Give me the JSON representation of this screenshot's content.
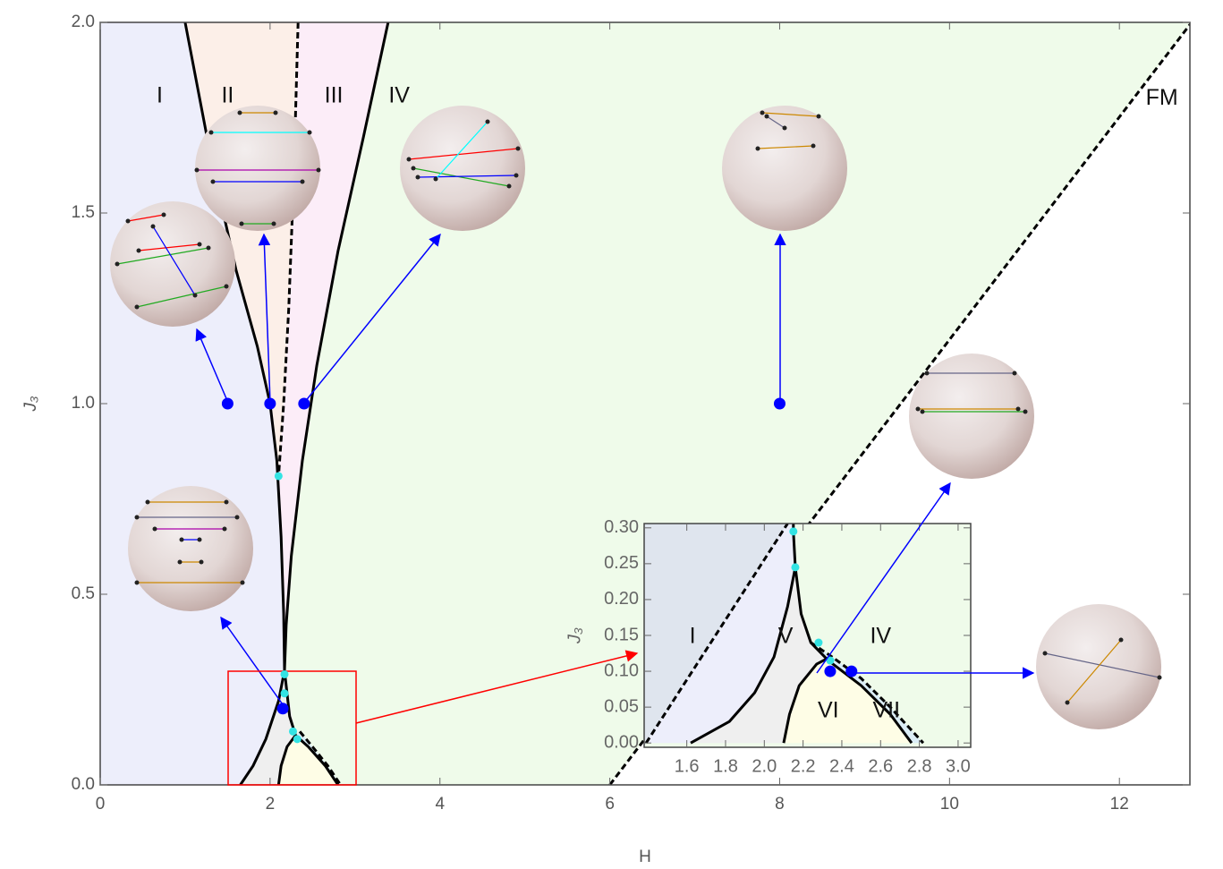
{
  "chart_data": [
    {
      "type": "line",
      "x_label": "H",
      "y_label": "J₃",
      "xlim": [
        0,
        12.83
      ],
      "ylim": [
        0,
        2.0
      ],
      "xticks": [
        0,
        2,
        4,
        6,
        8,
        10,
        12
      ],
      "yticks": [
        {
          "value": 0,
          "label": "0.0"
        },
        0.5,
        {
          "value": 1.0,
          "label": "1.0"
        },
        1.5,
        {
          "value": 2.0,
          "label": "2.0"
        }
      ],
      "series": [
        {
          "color": "#000000",
          "dash": false,
          "x": [
            1.0,
            1.3,
            1.6,
            1.85,
            2.0,
            2.08,
            2.13,
            2.16,
            2.17
          ],
          "y": [
            2.0,
            1.65,
            1.35,
            1.15,
            1.0,
            0.85,
            0.65,
            0.45,
            0.3
          ]
        },
        {
          "color": "#000000",
          "dash": true,
          "x": [
            2.33,
            2.28,
            2.22,
            2.16,
            2.1
          ],
          "y": [
            2.0,
            1.6,
            1.25,
            1.0,
            0.81
          ]
        },
        {
          "color": "#000000",
          "dash": false,
          "x": [
            3.39,
            3.1,
            2.8,
            2.55,
            2.38,
            2.25,
            2.19,
            2.17
          ],
          "y": [
            2.0,
            1.7,
            1.4,
            1.1,
            0.85,
            0.6,
            0.42,
            0.3
          ]
        },
        {
          "color": "#000000",
          "dash": false,
          "x": [
            2.17,
            2.1,
            1.95,
            1.8,
            1.65
          ],
          "y": [
            0.3,
            0.22,
            0.12,
            0.05,
            0.0
          ]
        },
        {
          "color": "#000000",
          "dash": false,
          "x": [
            2.1,
            2.13,
            2.2,
            2.3
          ],
          "y": [
            0.0,
            0.05,
            0.1,
            0.13
          ]
        },
        {
          "color": "#000000",
          "dash": false,
          "x": [
            2.17,
            2.23,
            2.3,
            2.45,
            2.65,
            2.8
          ],
          "y": [
            0.3,
            0.18,
            0.13,
            0.1,
            0.05,
            0.0
          ]
        },
        {
          "color": "#000000",
          "dash": true,
          "x": [
            2.35,
            2.5,
            2.68,
            2.83
          ],
          "y": [
            0.14,
            0.1,
            0.05,
            0.0
          ]
        },
        {
          "color": "#000000",
          "dash": true,
          "x": [
            6.0,
            12.85
          ],
          "y": [
            0.0,
            2.0
          ]
        }
      ],
      "points": [
        {
          "color": "#0000ff",
          "x": [
            1.5,
            2.0,
            2.4,
            8.0,
            2.15
          ],
          "y": [
            1.0,
            1.0,
            1.0,
            1.0,
            0.2
          ]
        },
        {
          "color": "#33e3e3",
          "x": [
            2.1,
            2.17,
            2.17,
            2.27,
            2.32
          ],
          "y": [
            0.81,
            0.29,
            0.24,
            0.14,
            0.12
          ]
        }
      ],
      "annotations": [
        {
          "text": "I",
          "x": 0.7,
          "y": 1.805
        },
        {
          "text": "II",
          "x": 1.5,
          "y": 1.805
        },
        {
          "text": "III",
          "x": 2.75,
          "y": 1.805
        },
        {
          "text": "IV",
          "x": 3.52,
          "y": 1.805
        },
        {
          "text": "FM",
          "x": 12.5,
          "y": 1.8
        }
      ]
    },
    {
      "type": "line",
      "y_label": "J₃",
      "xlim": [
        1.38,
        3.065
      ],
      "ylim": [
        -0.006,
        0.306
      ],
      "xticks": [
        1.6,
        1.8,
        {
          "value": 2.0,
          "label": "2.0"
        },
        2.2,
        2.4,
        2.6,
        2.8,
        {
          "value": 3.0,
          "label": "3.0"
        }
      ],
      "yticks": [
        {
          "value": 0,
          "label": "0.00"
        },
        0.05,
        {
          "value": 0.1,
          "label": "0.10"
        },
        0.15,
        {
          "value": 0.2,
          "label": "0.20"
        },
        0.25,
        {
          "value": 0.3,
          "label": "0.30"
        }
      ],
      "series": [
        {
          "color": "#000000",
          "dash": true,
          "x": [
            1.39,
            2.12
          ],
          "y": [
            0.0,
            0.306
          ]
        },
        {
          "color": "#000000",
          "dash": false,
          "x": [
            2.15,
            2.15,
            2.16
          ],
          "y": [
            0.306,
            0.295,
            0.245
          ]
        },
        {
          "color": "#000000",
          "dash": false,
          "x": [
            2.16,
            2.12,
            2.05,
            1.95,
            1.82,
            1.62
          ],
          "y": [
            0.245,
            0.19,
            0.12,
            0.07,
            0.03,
            0.0
          ]
        },
        {
          "color": "#000000",
          "dash": false,
          "x": [
            2.16,
            2.19,
            2.24,
            2.33,
            2.5,
            2.65,
            2.76
          ],
          "y": [
            0.245,
            0.18,
            0.14,
            0.115,
            0.08,
            0.04,
            0.0
          ]
        },
        {
          "color": "#000000",
          "dash": false,
          "x": [
            2.1,
            2.13,
            2.18,
            2.27,
            2.34
          ],
          "y": [
            0.0,
            0.04,
            0.08,
            0.11,
            0.12
          ]
        },
        {
          "color": "#000000",
          "dash": true,
          "x": [
            2.24,
            2.35,
            2.5,
            2.65,
            2.82
          ],
          "y": [
            0.14,
            0.12,
            0.09,
            0.05,
            0.0
          ]
        }
      ],
      "points": [
        {
          "color": "#0000ff",
          "x": [
            2.34,
            2.45
          ],
          "y": [
            0.1,
            0.1
          ]
        },
        {
          "color": "#33e3e3",
          "x": [
            2.15,
            2.16,
            2.28,
            2.34
          ],
          "y": [
            0.295,
            0.245,
            0.14,
            0.115
          ]
        }
      ],
      "annotations": [
        {
          "text": "I",
          "x": 1.63,
          "y": 0.1475
        },
        {
          "text": "V",
          "x": 2.11,
          "y": 0.1475
        },
        {
          "text": "IV",
          "x": 2.6,
          "y": 0.1475
        },
        {
          "text": "VI",
          "x": 2.33,
          "y": 0.044
        },
        {
          "text": "VII",
          "x": 2.63,
          "y": 0.044
        }
      ]
    }
  ]
}
